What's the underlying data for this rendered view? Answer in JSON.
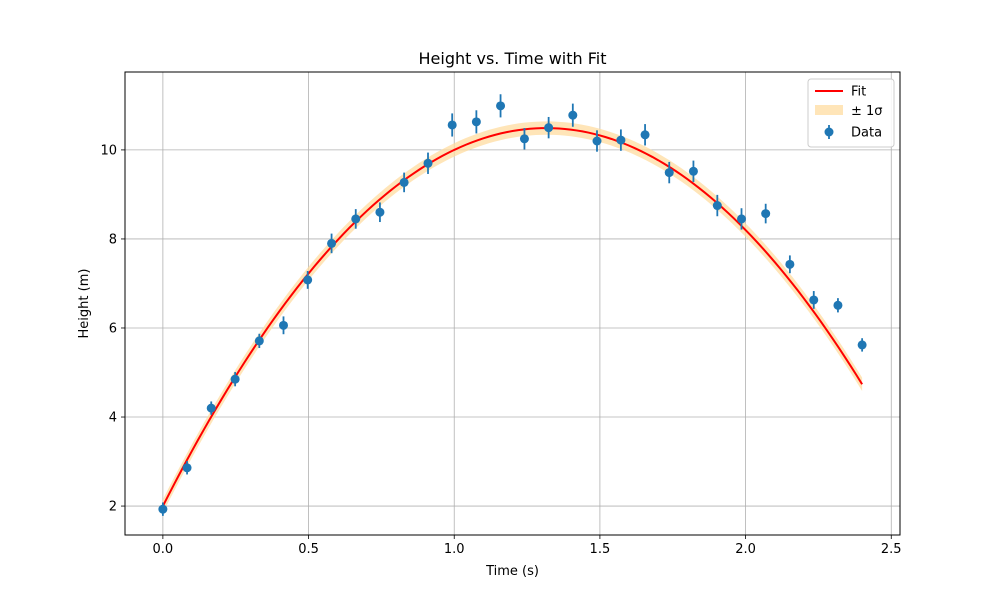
{
  "chart_data": {
    "type": "scatter",
    "title": "Height vs. Time with Fit",
    "xlabel": "Time (s)",
    "ylabel": "Height (m)",
    "xlim": [
      -0.13,
      2.53
    ],
    "ylim": [
      1.35,
      11.75
    ],
    "xticks": [
      0.0,
      0.5,
      1.0,
      1.5,
      2.0,
      2.5
    ],
    "xtick_labels": [
      "0.0",
      "0.5",
      "1.0",
      "1.5",
      "2.0",
      "2.5"
    ],
    "yticks": [
      2,
      4,
      6,
      8,
      10
    ],
    "ytick_labels": [
      "2",
      "4",
      "6",
      "8",
      "10"
    ],
    "grid": true,
    "legend_position": "top-right",
    "legend": {
      "fit": "Fit",
      "band": "± 1σ",
      "data": "Data"
    },
    "colors": {
      "fit": "#ff0000",
      "band": "#ffdca0",
      "data": "#1f77b4",
      "grid": "#b0b0b0"
    },
    "fit": {
      "model": "quadratic",
      "a": -4.9,
      "b": 12.9,
      "c": 2.0,
      "x_range": [
        0.0,
        2.4
      ],
      "sigma": 0.15
    },
    "data": {
      "x": [
        0.0,
        0.083,
        0.166,
        0.248,
        0.331,
        0.414,
        0.497,
        0.579,
        0.662,
        0.745,
        0.828,
        0.91,
        0.993,
        1.076,
        1.159,
        1.241,
        1.324,
        1.407,
        1.49,
        1.572,
        1.655,
        1.738,
        1.821,
        1.903,
        1.986,
        2.069,
        2.152,
        2.234,
        2.317,
        2.4
      ],
      "y": [
        1.93,
        2.86,
        4.2,
        4.85,
        5.71,
        6.06,
        7.08,
        7.9,
        8.45,
        8.6,
        9.27,
        9.7,
        10.56,
        10.63,
        10.99,
        10.25,
        10.5,
        10.78,
        10.2,
        10.22,
        10.34,
        9.49,
        9.52,
        8.75,
        8.45,
        8.57,
        7.43,
        6.63,
        6.51,
        5.62
      ],
      "yerr": [
        0.15,
        0.15,
        0.15,
        0.16,
        0.16,
        0.2,
        0.2,
        0.22,
        0.22,
        0.22,
        0.22,
        0.24,
        0.26,
        0.26,
        0.26,
        0.24,
        0.24,
        0.26,
        0.24,
        0.24,
        0.24,
        0.24,
        0.24,
        0.24,
        0.24,
        0.22,
        0.2,
        0.2,
        0.16,
        0.15
      ]
    }
  }
}
